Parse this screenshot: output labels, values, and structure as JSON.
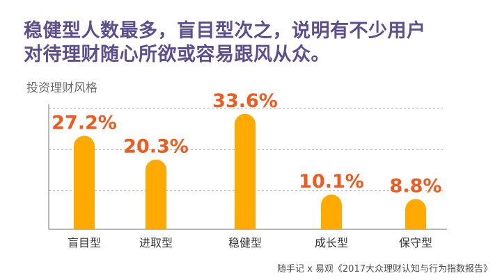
{
  "headline": {
    "line1": "稳健型人数最多，盲目型次之，说明有不少用户",
    "line2": "对待理财随心所欲或容易跟风从众。"
  },
  "subtitle": "投资理财风格",
  "source": "随手记 x 易观《2017大众理财认知与行为指数报告》",
  "colors": {
    "bar": "#ffaa00",
    "value_label": "#f05a1e",
    "headline": "#5d4e8f",
    "grid": "#b0b0b0"
  },
  "chart_data": {
    "type": "bar",
    "title": "投资理财风格",
    "categories": [
      "盲目型",
      "进取型",
      "稳健型",
      "成长型",
      "保守型"
    ],
    "values": [
      27.2,
      20.3,
      33.6,
      10.1,
      8.8
    ],
    "value_labels": [
      "27.2%",
      "20.3%",
      "33.6%",
      "10.1%",
      "8.8%"
    ],
    "unit": "%",
    "ylim": [
      0,
      36
    ],
    "grid": true,
    "legend": "none"
  }
}
